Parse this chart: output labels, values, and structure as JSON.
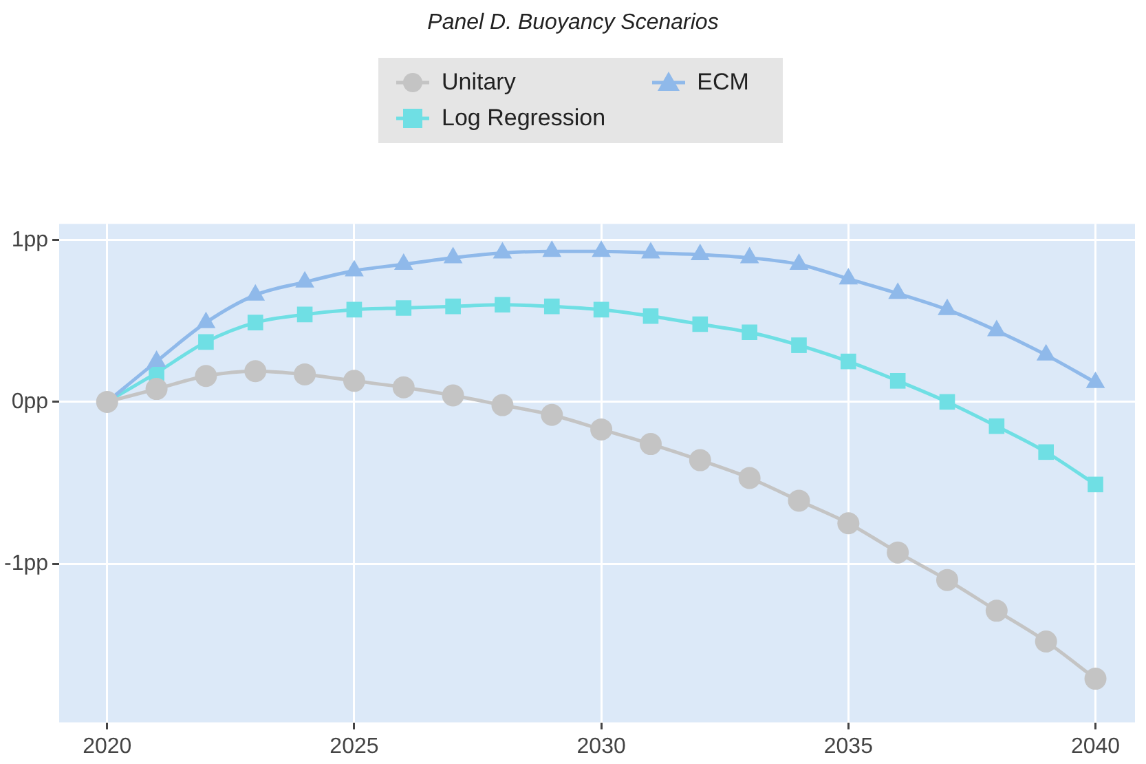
{
  "chart_data": {
    "type": "line",
    "title": "Panel D. Buoyancy Scenarios",
    "x": [
      2020,
      2021,
      2022,
      2023,
      2024,
      2025,
      2026,
      2027,
      2028,
      2029,
      2030,
      2031,
      2032,
      2033,
      2034,
      2035,
      2036,
      2037,
      2038,
      2039,
      2040
    ],
    "series": [
      {
        "name": "Unitary",
        "color": "#c4c4c4",
        "marker": "circle",
        "values": [
          0,
          0.08,
          0.16,
          0.19,
          0.17,
          0.13,
          0.09,
          0.04,
          -0.02,
          -0.08,
          -0.17,
          -0.26,
          -0.36,
          -0.47,
          -0.61,
          -0.75,
          -0.93,
          -1.1,
          -1.29,
          -1.48,
          -1.71
        ]
      },
      {
        "name": "ECM",
        "color": "#8fb9ea",
        "marker": "triangle",
        "values": [
          0,
          0.25,
          0.49,
          0.66,
          0.74,
          0.81,
          0.85,
          0.89,
          0.92,
          0.93,
          0.93,
          0.92,
          0.91,
          0.89,
          0.85,
          0.76,
          0.67,
          0.57,
          0.44,
          0.29,
          0.12
        ]
      },
      {
        "name": "Log Regression",
        "color": "#6fdfe4",
        "marker": "square",
        "values": [
          0,
          0.18,
          0.37,
          0.49,
          0.54,
          0.57,
          0.58,
          0.59,
          0.6,
          0.59,
          0.57,
          0.53,
          0.48,
          0.43,
          0.35,
          0.25,
          0.13,
          0,
          -0.15,
          -0.31,
          -0.51
        ]
      }
    ],
    "xlim": [
      2019.03,
      2040.8
    ],
    "xticks": [
      2020,
      2025,
      2030,
      2035,
      2040
    ],
    "ylim": [
      -1.98,
      1.1
    ],
    "yticks": [
      {
        "value": -1,
        "label": "-1pp"
      },
      {
        "value": 0,
        "label": "0pp"
      },
      {
        "value": 1,
        "label": "1pp"
      }
    ],
    "grid": true,
    "legend": "top",
    "line_style": "solid"
  }
}
